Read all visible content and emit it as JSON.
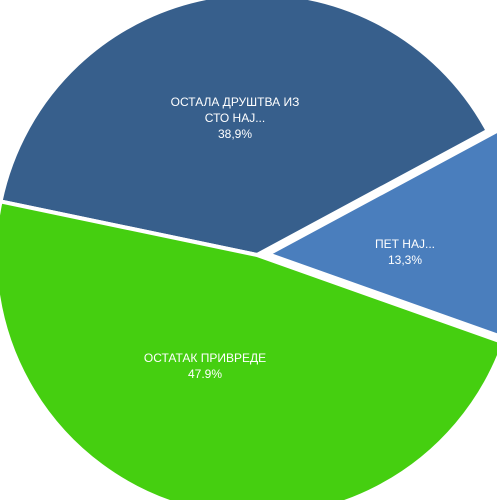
{
  "chart_data": {
    "type": "pie",
    "title": "",
    "slices": [
      {
        "label": "ОСТАЛА ДРУШТВА ИЗ СТО НАЈ...",
        "label_lines": [
          "ОСТАЛА ДРУШТВА ИЗ",
          "СТО НАЈ..."
        ],
        "value_label": "38,9%",
        "value": 38.9,
        "color": "#375f8c"
      },
      {
        "label": "ПЕТ НАЈ...",
        "label_lines": [
          "ПЕТ НАЈ..."
        ],
        "value_label": "13,3%",
        "value": 13.3,
        "color": "#4a7ebd"
      },
      {
        "label": "ОСТАТАК ПРИВРЕДЕ",
        "label_lines": [
          "ОСТАТАК ПРИВРЕДЕ"
        ],
        "value_label": "47.9%",
        "value": 47.9,
        "color": "#45cf10"
      }
    ]
  }
}
